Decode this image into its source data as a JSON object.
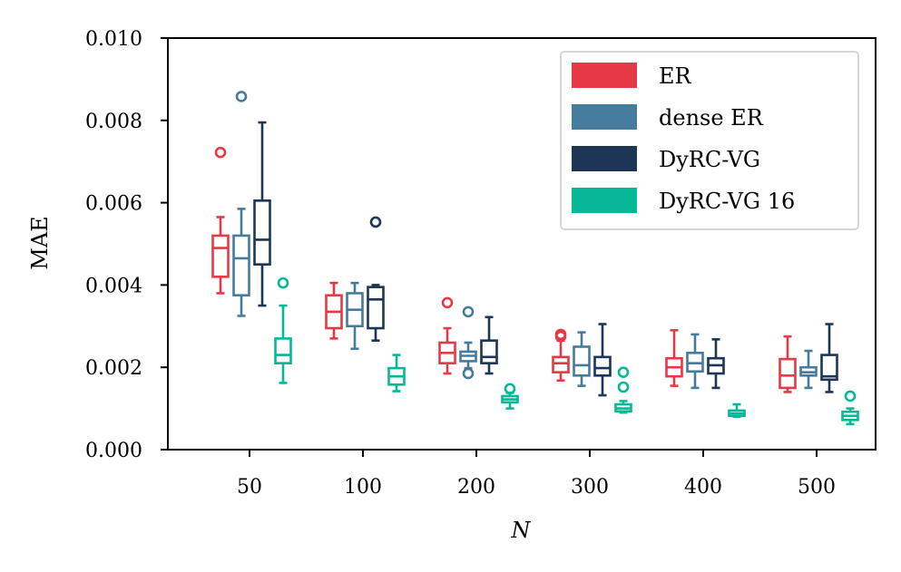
{
  "chart_data": {
    "type": "box",
    "xlabel": "N",
    "ylabel": "MAE",
    "ylim": [
      0,
      0.01
    ],
    "yticks": [
      "0.000",
      "0.002",
      "0.004",
      "0.006",
      "0.008",
      "0.010"
    ],
    "ytick_values": [
      0,
      0.002,
      0.004,
      0.006,
      0.008,
      0.01
    ],
    "categories": [
      "50",
      "100",
      "200",
      "300",
      "400",
      "500"
    ],
    "grid": false,
    "legend_position": "top-right",
    "series": [
      {
        "name": "ER",
        "color": "#e63946",
        "boxes": [
          {
            "whislo": 0.0038,
            "q1": 0.0042,
            "med": 0.0049,
            "q3": 0.0052,
            "whishi": 0.00565,
            "fliers": [
              0.00722
            ]
          },
          {
            "whislo": 0.0027,
            "q1": 0.00295,
            "med": 0.00335,
            "q3": 0.00375,
            "whishi": 0.00405,
            "fliers": []
          },
          {
            "whislo": 0.00185,
            "q1": 0.0021,
            "med": 0.00235,
            "q3": 0.0026,
            "whishi": 0.00295,
            "fliers": [
              0.00357
            ]
          },
          {
            "whislo": 0.00168,
            "q1": 0.00188,
            "med": 0.0021,
            "q3": 0.00225,
            "whishi": 0.00265,
            "fliers": [
              0.00275,
              0.0028
            ]
          },
          {
            "whislo": 0.00155,
            "q1": 0.00178,
            "med": 0.002,
            "q3": 0.00222,
            "whishi": 0.0029,
            "fliers": []
          },
          {
            "whislo": 0.0014,
            "q1": 0.0015,
            "med": 0.0018,
            "q3": 0.0022,
            "whishi": 0.00275,
            "fliers": []
          }
        ]
      },
      {
        "name": "dense ER",
        "color": "#457b9d",
        "boxes": [
          {
            "whislo": 0.00325,
            "q1": 0.00375,
            "med": 0.00465,
            "q3": 0.0052,
            "whishi": 0.00585,
            "fliers": [
              0.00858
            ]
          },
          {
            "whislo": 0.00245,
            "q1": 0.003,
            "med": 0.0034,
            "q3": 0.0038,
            "whishi": 0.00405,
            "fliers": []
          },
          {
            "whislo": 0.00198,
            "q1": 0.00215,
            "med": 0.00228,
            "q3": 0.00238,
            "whishi": 0.0026,
            "fliers": [
              0.00335,
              0.00185
            ]
          },
          {
            "whislo": 0.00155,
            "q1": 0.0018,
            "med": 0.00205,
            "q3": 0.0025,
            "whishi": 0.00285,
            "fliers": []
          },
          {
            "whislo": 0.0015,
            "q1": 0.0019,
            "med": 0.0021,
            "q3": 0.00235,
            "whishi": 0.0028,
            "fliers": []
          },
          {
            "whislo": 0.0015,
            "q1": 0.0018,
            "med": 0.00188,
            "q3": 0.002,
            "whishi": 0.0024,
            "fliers": []
          }
        ]
      },
      {
        "name": "DyRC-VG",
        "color": "#1d3557",
        "boxes": [
          {
            "whislo": 0.0035,
            "q1": 0.0045,
            "med": 0.0051,
            "q3": 0.00605,
            "whishi": 0.00795,
            "fliers": []
          },
          {
            "whislo": 0.00265,
            "q1": 0.00295,
            "med": 0.00365,
            "q3": 0.00395,
            "whishi": 0.004,
            "fliers": [
              0.00553
            ]
          },
          {
            "whislo": 0.00185,
            "q1": 0.0021,
            "med": 0.00225,
            "q3": 0.00265,
            "whishi": 0.00322,
            "fliers": []
          },
          {
            "whislo": 0.00132,
            "q1": 0.0018,
            "med": 0.00198,
            "q3": 0.00225,
            "whishi": 0.00305,
            "fliers": []
          },
          {
            "whislo": 0.0015,
            "q1": 0.00185,
            "med": 0.00205,
            "q3": 0.00222,
            "whishi": 0.00268,
            "fliers": []
          },
          {
            "whislo": 0.0014,
            "q1": 0.0017,
            "med": 0.00178,
            "q3": 0.0023,
            "whishi": 0.00305,
            "fliers": []
          }
        ]
      },
      {
        "name": "DyRC-VG 16",
        "color": "#06b896",
        "boxes": [
          {
            "whislo": 0.00162,
            "q1": 0.0021,
            "med": 0.0023,
            "q3": 0.0027,
            "whishi": 0.0035,
            "fliers": [
              0.00405
            ]
          },
          {
            "whislo": 0.00142,
            "q1": 0.00158,
            "med": 0.00178,
            "q3": 0.00198,
            "whishi": 0.0023,
            "fliers": []
          },
          {
            "whislo": 0.001,
            "q1": 0.00115,
            "med": 0.00122,
            "q3": 0.0013,
            "whishi": 0.00138,
            "fliers": [
              0.00148
            ]
          },
          {
            "whislo": 0.0009,
            "q1": 0.00093,
            "med": 0.001,
            "q3": 0.0011,
            "whishi": 0.00118,
            "fliers": [
              0.00152,
              0.00188
            ]
          },
          {
            "whislo": 0.0008,
            "q1": 0.00082,
            "med": 0.00088,
            "q3": 0.00095,
            "whishi": 0.0011,
            "fliers": []
          },
          {
            "whislo": 0.00062,
            "q1": 0.00072,
            "med": 0.00082,
            "q3": 0.00092,
            "whishi": 0.001,
            "fliers": [
              0.0013
            ]
          }
        ]
      }
    ]
  }
}
